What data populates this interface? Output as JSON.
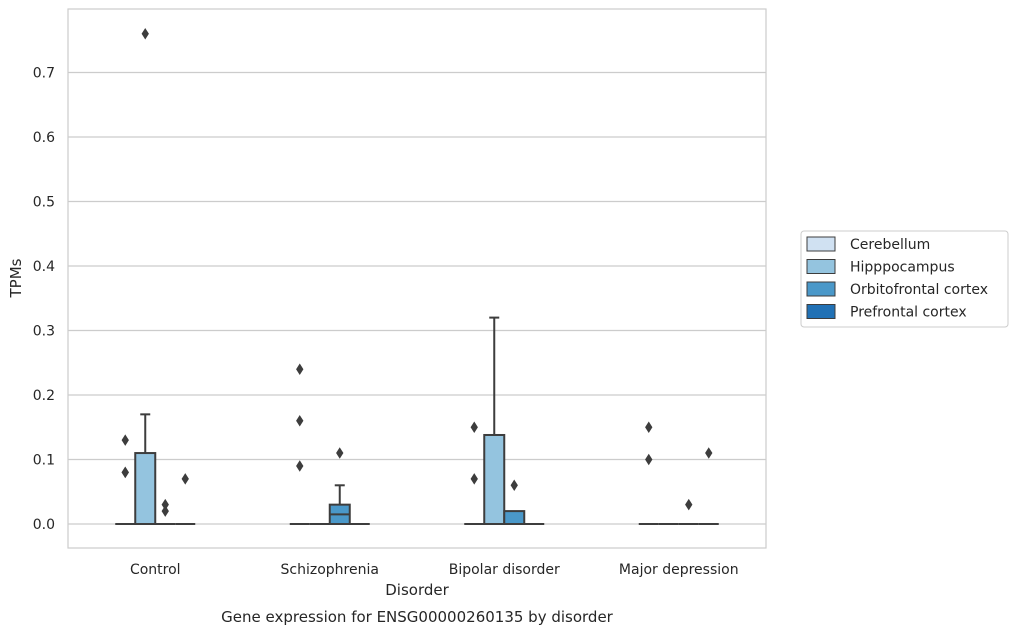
{
  "chart_data": {
    "type": "box",
    "title": "",
    "caption": "Gene expression for ENSG00000260135 by disorder",
    "xlabel": "Disorder",
    "ylabel": "TPMs",
    "ylim": [
      -0.037,
      0.8
    ],
    "yticks": [
      "0.0",
      "0.1",
      "0.2",
      "0.3",
      "0.4",
      "0.5",
      "0.6",
      "0.7"
    ],
    "grid": "horizontal",
    "legend_position": "right",
    "categories": [
      "Control",
      "Schizophrenia",
      "Bipolar disorder",
      "Major depression"
    ],
    "series": [
      {
        "name": "Cerebellum",
        "color": "#d0e1f2",
        "boxes": [
          {
            "category": "Control",
            "q1": 0.0,
            "median": 0.0,
            "q3": 0.0,
            "whisker_low": 0.0,
            "whisker_high": 0.0,
            "outliers": [
              0.13,
              0.08,
              0.08
            ]
          },
          {
            "category": "Schizophrenia",
            "q1": 0.0,
            "median": 0.0,
            "q3": 0.0,
            "whisker_low": 0.0,
            "whisker_high": 0.0,
            "outliers": [
              0.24,
              0.16,
              0.09
            ]
          },
          {
            "category": "Bipolar disorder",
            "q1": 0.0,
            "median": 0.0,
            "q3": 0.0,
            "whisker_low": 0.0,
            "whisker_high": 0.0,
            "outliers": [
              0.15,
              0.07
            ]
          },
          {
            "category": "Major depression",
            "q1": 0.0,
            "median": 0.0,
            "q3": 0.0,
            "whisker_low": 0.0,
            "whisker_high": 0.0,
            "outliers": [
              0.15,
              0.1
            ]
          }
        ]
      },
      {
        "name": "Hipppocampus",
        "color": "#94c4df",
        "boxes": [
          {
            "category": "Control",
            "q1": 0.0,
            "median": 0.0,
            "q3": 0.11,
            "whisker_low": 0.0,
            "whisker_high": 0.17,
            "outliers": [
              0.76
            ]
          },
          {
            "category": "Schizophrenia",
            "q1": 0.0,
            "median": 0.0,
            "q3": 0.0,
            "whisker_low": 0.0,
            "whisker_high": 0.0,
            "outliers": []
          },
          {
            "category": "Bipolar disorder",
            "q1": 0.0,
            "median": 0.0,
            "q3": 0.138,
            "whisker_low": 0.0,
            "whisker_high": 0.32,
            "outliers": []
          },
          {
            "category": "Major depression",
            "q1": 0.0,
            "median": 0.0,
            "q3": 0.0,
            "whisker_low": 0.0,
            "whisker_high": 0.0,
            "outliers": []
          }
        ]
      },
      {
        "name": "Orbitofrontal cortex",
        "color": "#4a98c9",
        "boxes": [
          {
            "category": "Control",
            "q1": 0.0,
            "median": 0.0,
            "q3": 0.0,
            "whisker_low": 0.0,
            "whisker_high": 0.0,
            "outliers": [
              0.03,
              0.02
            ]
          },
          {
            "category": "Schizophrenia",
            "q1": 0.0,
            "median": 0.015,
            "q3": 0.03,
            "whisker_low": 0.0,
            "whisker_high": 0.06,
            "outliers": [
              0.11
            ]
          },
          {
            "category": "Bipolar disorder",
            "q1": 0.0,
            "median": 0.0,
            "q3": 0.02,
            "whisker_low": 0.0,
            "whisker_high": 0.02,
            "outliers": [
              0.06
            ]
          },
          {
            "category": "Major depression",
            "q1": 0.0,
            "median": 0.0,
            "q3": 0.0,
            "whisker_low": 0.0,
            "whisker_high": 0.0,
            "outliers": [
              0.03
            ]
          }
        ]
      },
      {
        "name": "Prefrontal cortex",
        "color": "#2171b5",
        "boxes": [
          {
            "category": "Control",
            "q1": 0.0,
            "median": 0.0,
            "q3": 0.0,
            "whisker_low": 0.0,
            "whisker_high": 0.0,
            "outliers": [
              0.07
            ]
          },
          {
            "category": "Schizophrenia",
            "q1": 0.0,
            "median": 0.0,
            "q3": 0.0,
            "whisker_low": 0.0,
            "whisker_high": 0.0,
            "outliers": []
          },
          {
            "category": "Bipolar disorder",
            "q1": 0.0,
            "median": 0.0,
            "q3": 0.0,
            "whisker_low": 0.0,
            "whisker_high": 0.0,
            "outliers": []
          },
          {
            "category": "Major depression",
            "q1": 0.0,
            "median": 0.0,
            "q3": 0.0,
            "whisker_low": 0.0,
            "whisker_high": 0.0,
            "outliers": [
              0.11
            ]
          }
        ]
      }
    ]
  }
}
